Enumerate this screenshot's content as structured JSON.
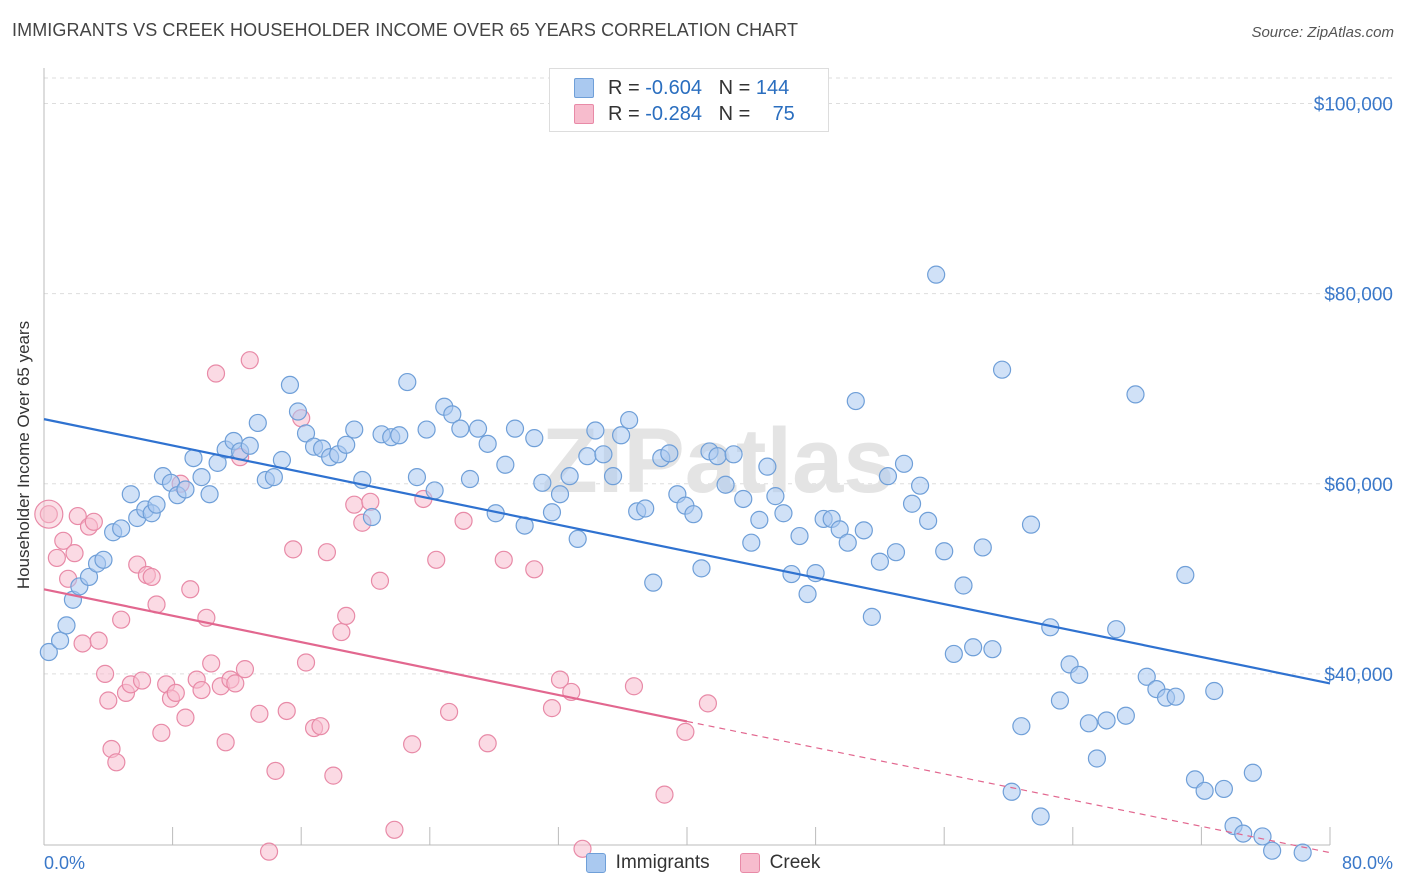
{
  "title": "IMMIGRANTS VS CREEK HOUSEHOLDER INCOME OVER 65 YEARS CORRELATION CHART",
  "source": "Source: ZipAtlas.com",
  "watermark": "ZIPatlas",
  "colors": {
    "immigrants_fill": "#aac9f0",
    "immigrants_stroke": "#6f9fd8",
    "immigrants_line": "#2f72d0",
    "creek_fill": "#f7bccd",
    "creek_stroke": "#e88aa7",
    "creek_line": "#e2678f",
    "axis_text": "#3a78c9",
    "grid": "#dddddd"
  },
  "legend_top": {
    "rows": [
      {
        "r_label": "R =",
        "r_value": "-0.604",
        "n_label": "N =",
        "n_value": "144"
      },
      {
        "r_label": "R =",
        "r_value": "-0.284",
        "n_label": "N =",
        "n_value": "75"
      }
    ]
  },
  "legend_bottom": [
    "Immigrants",
    "Creek"
  ],
  "chart_data": {
    "type": "scatter",
    "ylabel": "Householder Income Over 65 years",
    "xlabel": "",
    "xlim": [
      0,
      80
    ],
    "ylim": [
      22000,
      103000
    ],
    "x_tick_labels": [
      "0.0%",
      "80.0%"
    ],
    "y_ticks": [
      40000,
      60000,
      80000,
      100000
    ],
    "y_tick_labels": [
      "$40,000",
      "$60,000",
      "$80,000",
      "$100,000"
    ],
    "grid": "horizontal dashed",
    "legend_placement": "top-center",
    "series": [
      {
        "name": "Immigrants",
        "trend": {
          "x": [
            0,
            80
          ],
          "y": [
            66800,
            39000
          ]
        },
        "points": [
          [
            0.3,
            42.3
          ],
          [
            1.0,
            43.5
          ],
          [
            1.4,
            45.1
          ],
          [
            1.8,
            47.8
          ],
          [
            2.2,
            49.2
          ],
          [
            2.8,
            50.2
          ],
          [
            3.3,
            51.6
          ],
          [
            3.7,
            52.0
          ],
          [
            4.3,
            54.9
          ],
          [
            4.8,
            55.3
          ],
          [
            5.4,
            58.9
          ],
          [
            5.8,
            56.4
          ],
          [
            6.3,
            57.3
          ],
          [
            6.7,
            56.9
          ],
          [
            7.0,
            57.8
          ],
          [
            7.4,
            60.8
          ],
          [
            7.9,
            60.1
          ],
          [
            8.3,
            58.8
          ],
          [
            8.8,
            59.4
          ],
          [
            9.3,
            62.7
          ],
          [
            9.8,
            60.7
          ],
          [
            10.3,
            58.9
          ],
          [
            10.8,
            62.2
          ],
          [
            11.3,
            63.6
          ],
          [
            11.8,
            64.5
          ],
          [
            12.2,
            63.4
          ],
          [
            12.8,
            64.0
          ],
          [
            13.3,
            66.4
          ],
          [
            13.8,
            60.4
          ],
          [
            14.3,
            60.7
          ],
          [
            14.8,
            62.5
          ],
          [
            15.3,
            70.4
          ],
          [
            15.8,
            67.6
          ],
          [
            16.3,
            65.3
          ],
          [
            16.8,
            63.9
          ],
          [
            17.3,
            63.7
          ],
          [
            17.8,
            62.8
          ],
          [
            18.3,
            63.1
          ],
          [
            18.8,
            64.1
          ],
          [
            19.3,
            65.7
          ],
          [
            19.8,
            60.4
          ],
          [
            20.4,
            56.5
          ],
          [
            21.0,
            65.2
          ],
          [
            21.6,
            64.9
          ],
          [
            22.1,
            65.1
          ],
          [
            22.6,
            70.7
          ],
          [
            23.2,
            60.7
          ],
          [
            23.8,
            65.7
          ],
          [
            24.3,
            59.3
          ],
          [
            24.9,
            68.1
          ],
          [
            25.4,
            67.3
          ],
          [
            25.9,
            65.8
          ],
          [
            26.5,
            60.5
          ],
          [
            27.0,
            65.8
          ],
          [
            27.6,
            64.2
          ],
          [
            28.1,
            56.9
          ],
          [
            28.7,
            62.0
          ],
          [
            29.3,
            65.8
          ],
          [
            29.9,
            55.6
          ],
          [
            30.5,
            64.8
          ],
          [
            31.0,
            60.1
          ],
          [
            31.6,
            57.0
          ],
          [
            32.1,
            58.9
          ],
          [
            32.7,
            60.8
          ],
          [
            33.2,
            54.2
          ],
          [
            33.8,
            62.9
          ],
          [
            34.3,
            65.6
          ],
          [
            34.8,
            63.1
          ],
          [
            35.4,
            60.8
          ],
          [
            35.9,
            65.1
          ],
          [
            36.4,
            66.7
          ],
          [
            36.9,
            57.1
          ],
          [
            37.4,
            57.4
          ],
          [
            37.9,
            49.6
          ],
          [
            38.4,
            62.7
          ],
          [
            38.9,
            63.2
          ],
          [
            39.4,
            58.9
          ],
          [
            39.9,
            57.7
          ],
          [
            40.4,
            56.8
          ],
          [
            40.9,
            51.1
          ],
          [
            41.4,
            63.4
          ],
          [
            41.9,
            62.9
          ],
          [
            42.4,
            59.9
          ],
          [
            42.9,
            63.1
          ],
          [
            43.5,
            58.4
          ],
          [
            44.0,
            53.8
          ],
          [
            44.5,
            56.2
          ],
          [
            45.0,
            61.8
          ],
          [
            45.5,
            58.7
          ],
          [
            46.0,
            56.9
          ],
          [
            46.5,
            50.5
          ],
          [
            47.0,
            54.5
          ],
          [
            47.5,
            48.4
          ],
          [
            48.0,
            50.6
          ],
          [
            48.5,
            56.3
          ],
          [
            49.0,
            56.3
          ],
          [
            49.5,
            55.2
          ],
          [
            50.0,
            53.8
          ],
          [
            50.5,
            68.7
          ],
          [
            51.0,
            55.1
          ],
          [
            51.5,
            46.0
          ],
          [
            52.0,
            51.8
          ],
          [
            52.5,
            60.8
          ],
          [
            53.0,
            52.8
          ],
          [
            53.5,
            62.1
          ],
          [
            54.0,
            57.9
          ],
          [
            54.5,
            59.8
          ],
          [
            55.0,
            56.1
          ],
          [
            55.5,
            82.0
          ],
          [
            56.0,
            52.9
          ],
          [
            56.6,
            42.1
          ],
          [
            57.2,
            49.3
          ],
          [
            57.8,
            42.8
          ],
          [
            58.4,
            53.3
          ],
          [
            59.0,
            42.6
          ],
          [
            59.6,
            72.0
          ],
          [
            60.2,
            27.6
          ],
          [
            60.8,
            34.5
          ],
          [
            61.4,
            55.7
          ],
          [
            62.0,
            25.0
          ],
          [
            62.6,
            44.9
          ],
          [
            63.2,
            37.2
          ],
          [
            63.8,
            41.0
          ],
          [
            64.4,
            39.9
          ],
          [
            65.0,
            34.8
          ],
          [
            65.5,
            31.1
          ],
          [
            66.1,
            35.1
          ],
          [
            66.7,
            44.7
          ],
          [
            67.3,
            35.6
          ],
          [
            67.9,
            69.4
          ],
          [
            68.6,
            39.7
          ],
          [
            69.2,
            38.4
          ],
          [
            69.8,
            37.5
          ],
          [
            70.4,
            37.6
          ],
          [
            71.0,
            50.4
          ],
          [
            71.6,
            28.9
          ],
          [
            72.2,
            27.7
          ],
          [
            72.8,
            38.2
          ],
          [
            73.4,
            27.9
          ],
          [
            74.0,
            24.0
          ],
          [
            74.6,
            23.2
          ],
          [
            75.2,
            29.6
          ],
          [
            75.8,
            22.9
          ],
          [
            76.4,
            21.4
          ],
          [
            78.3,
            21.2
          ]
        ]
      },
      {
        "name": "Creek",
        "trend": {
          "x": [
            0,
            40
          ],
          "y": [
            48900,
            35000
          ]
        },
        "trend_dashed": {
          "x": [
            40,
            80
          ],
          "y": [
            35000,
            21200
          ]
        },
        "points": [
          [
            0.3,
            56.8
          ],
          [
            0.8,
            52.2
          ],
          [
            1.2,
            54.0
          ],
          [
            1.5,
            50.0
          ],
          [
            1.9,
            52.7
          ],
          [
            2.1,
            56.6
          ],
          [
            2.4,
            43.2
          ],
          [
            2.8,
            55.5
          ],
          [
            3.1,
            56.0
          ],
          [
            3.4,
            43.5
          ],
          [
            3.8,
            40.0
          ],
          [
            4.0,
            37.2
          ],
          [
            4.2,
            32.1
          ],
          [
            4.5,
            30.7
          ],
          [
            4.8,
            45.7
          ],
          [
            5.1,
            38.0
          ],
          [
            5.4,
            38.9
          ],
          [
            5.8,
            51.5
          ],
          [
            6.1,
            39.3
          ],
          [
            6.4,
            50.4
          ],
          [
            6.7,
            50.2
          ],
          [
            7.0,
            47.3
          ],
          [
            7.3,
            33.8
          ],
          [
            7.6,
            38.9
          ],
          [
            7.9,
            37.4
          ],
          [
            8.2,
            38.0
          ],
          [
            8.5,
            60.0
          ],
          [
            8.8,
            35.4
          ],
          [
            9.1,
            48.9
          ],
          [
            9.5,
            39.4
          ],
          [
            9.8,
            38.3
          ],
          [
            10.1,
            45.9
          ],
          [
            10.4,
            41.1
          ],
          [
            10.7,
            71.6
          ],
          [
            11.0,
            38.7
          ],
          [
            11.3,
            32.8
          ],
          [
            11.6,
            39.4
          ],
          [
            11.9,
            39.0
          ],
          [
            12.2,
            62.8
          ],
          [
            12.5,
            40.5
          ],
          [
            12.8,
            73.0
          ],
          [
            13.4,
            35.8
          ],
          [
            14.0,
            21.3
          ],
          [
            14.4,
            29.8
          ],
          [
            15.1,
            36.1
          ],
          [
            15.5,
            53.1
          ],
          [
            16.0,
            66.9
          ],
          [
            16.3,
            41.2
          ],
          [
            16.8,
            34.3
          ],
          [
            17.2,
            34.5
          ],
          [
            17.6,
            52.8
          ],
          [
            18.0,
            29.3
          ],
          [
            18.5,
            44.4
          ],
          [
            18.8,
            46.1
          ],
          [
            19.3,
            57.8
          ],
          [
            19.8,
            55.9
          ],
          [
            20.3,
            58.1
          ],
          [
            20.9,
            49.8
          ],
          [
            21.8,
            23.6
          ],
          [
            22.9,
            32.6
          ],
          [
            23.6,
            58.4
          ],
          [
            24.4,
            52.0
          ],
          [
            25.2,
            36.0
          ],
          [
            26.1,
            56.1
          ],
          [
            27.6,
            32.7
          ],
          [
            28.6,
            52.0
          ],
          [
            30.5,
            51.0
          ],
          [
            31.6,
            36.4
          ],
          [
            32.1,
            39.4
          ],
          [
            32.8,
            38.1
          ],
          [
            33.5,
            21.6
          ],
          [
            36.7,
            38.7
          ],
          [
            38.6,
            27.3
          ],
          [
            39.9,
            33.9
          ],
          [
            41.3,
            36.9
          ]
        ]
      }
    ]
  }
}
